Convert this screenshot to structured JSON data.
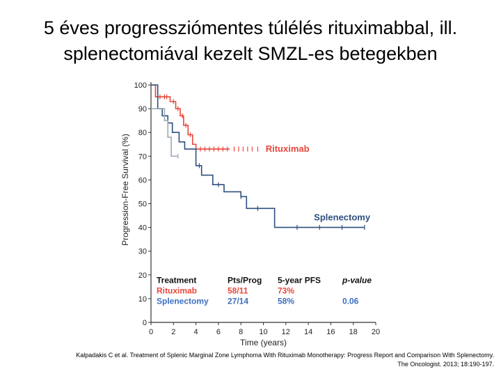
{
  "slide": {
    "title_line1": "5 éves progressziómentes túlélés rituximabbal, ill.",
    "title_line2": "splenectomiával kezelt SMZL-es betegekben",
    "citation_line1": "Kalpadakis C et al. Treatment of Splenic Marginal Zone Lymphoma With Rituximab Monotherapy: Progress Report and Comparison With Splenectomy.",
    "citation_line2": "The Oncologist. 2013; 18:190-197."
  },
  "chart_data": {
    "type": "line",
    "step": true,
    "xlabel": "Time (years)",
    "ylabel": "Progression-Free Survival (%)",
    "xlim": [
      0,
      20
    ],
    "ylim": [
      0,
      100
    ],
    "xticks": [
      0,
      2,
      4,
      6,
      8,
      10,
      12,
      14,
      16,
      18,
      20
    ],
    "yticks": [
      0,
      10,
      20,
      30,
      40,
      50,
      60,
      70,
      80,
      90,
      100
    ],
    "grid": false,
    "series": [
      {
        "name": "Rituximab",
        "color": "#e8473c",
        "x": [
          0,
          0.4,
          1.7,
          2.2,
          2.6,
          2.9,
          3.3,
          3.7,
          4.0,
          7.0
        ],
        "y": [
          100,
          95,
          93,
          90,
          87,
          83,
          79,
          75,
          73,
          73
        ],
        "censor_x": [
          0.8,
          1.2,
          1.4,
          2.0,
          2.4,
          2.8,
          3.1,
          3.5,
          4.4,
          4.8,
          5.2,
          5.6,
          6.0,
          6.4,
          6.8,
          7.4,
          7.8,
          8.2,
          8.6,
          9.0,
          9.5
        ]
      },
      {
        "name": "Splenectomy",
        "color": "#2e4f7e",
        "x": [
          0,
          0.6,
          1.0,
          1.5,
          1.9,
          2.5,
          3.0,
          4.0,
          4.5,
          5.5,
          6.5,
          8.0,
          8.5,
          9.5,
          11.0,
          19.0
        ],
        "y": [
          100,
          90,
          87,
          84,
          80,
          76,
          73,
          66,
          62,
          58,
          55,
          53,
          48,
          48,
          40,
          40
        ],
        "censor_x": [
          4.3,
          6.0,
          8.0,
          9.5,
          13.0,
          15.0,
          17.0,
          19.0
        ]
      },
      {
        "color": "#9aa9b8",
        "x": [
          0,
          1.2,
          1.5,
          1.8,
          2.4
        ],
        "y": [
          90,
          85,
          78,
          70,
          70
        ],
        "censor_x": [
          2.4
        ]
      }
    ],
    "annotations": [
      {
        "text": "Rituximab",
        "color": "#e8473c"
      },
      {
        "text": "Splenectomy",
        "color": "#2e4f7e"
      }
    ],
    "table": {
      "headers": [
        "Treatment",
        "Pts/Prog",
        "5-year PFS",
        "p-value"
      ],
      "rows": [
        {
          "cells": [
            "Rituximab",
            "58/11",
            "73%",
            ""
          ],
          "color": "#e8473c"
        },
        {
          "cells": [
            "Splenectomy",
            "27/14",
            "58%",
            "0.06"
          ],
          "color": "#3b6fc2"
        }
      ]
    }
  }
}
